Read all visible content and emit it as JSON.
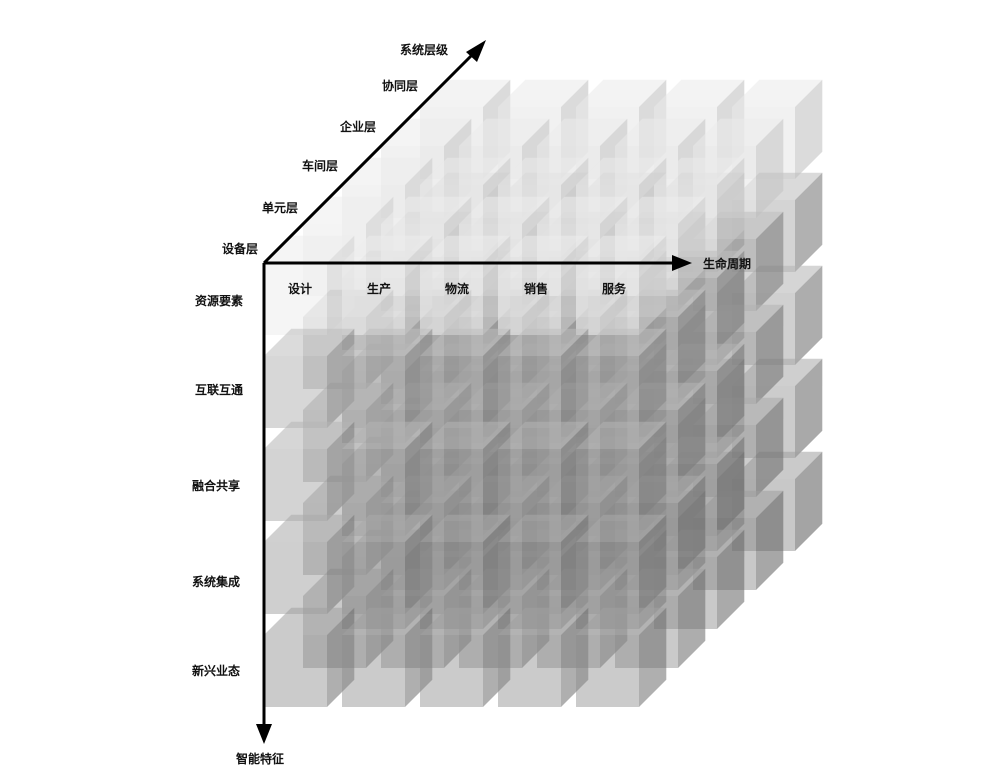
{
  "axes": {
    "system_level": {
      "title": "系统层级",
      "levels": [
        "设备层",
        "单元层",
        "车间层",
        "企业层",
        "协同层"
      ]
    },
    "lifecycle": {
      "title": "生命周期",
      "stages": [
        "设计",
        "生产",
        "物流",
        "销售",
        "服务"
      ]
    },
    "intelligent_features": {
      "title": "智能特征",
      "features": [
        "资源要素",
        "互联互通",
        "融合共享",
        "系统集成",
        "新兴业态"
      ]
    }
  },
  "colors": {
    "front_lightest": "#ececec",
    "front_darkest": "#7a7a7a",
    "side_dark": "#5e5e5e",
    "top_light": "#e4e4e4",
    "axis": "#000000"
  }
}
